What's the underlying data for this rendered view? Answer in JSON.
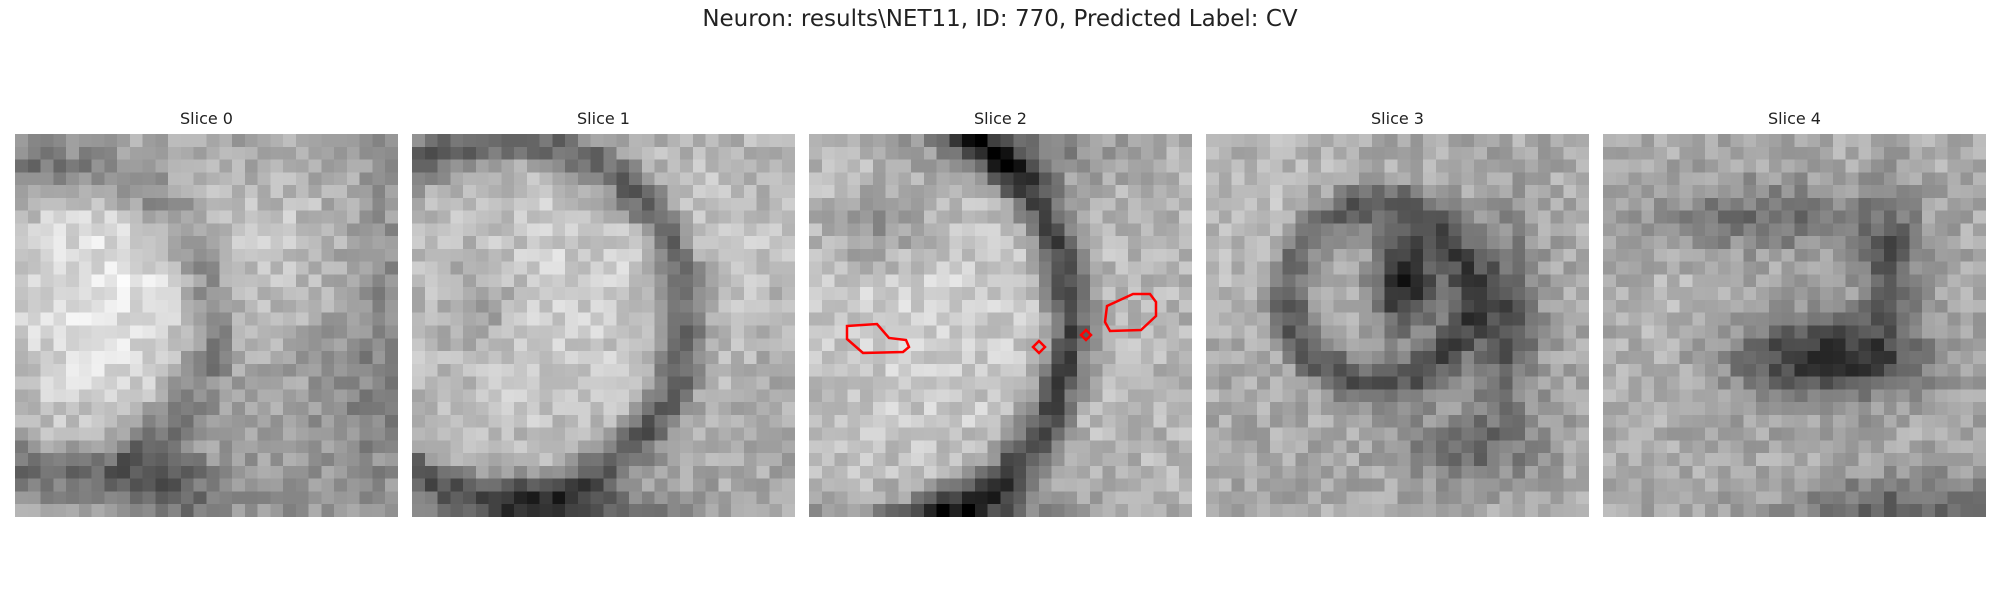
{
  "figure": {
    "title": "Neuron: results\\NET11, ID: 770, Predicted Label: CV"
  },
  "slices": [
    {
      "title": "Slice 0",
      "pattern": "bright-left-blob"
    },
    {
      "title": "Slice 1",
      "pattern": "round-cell-with-dark-membrane"
    },
    {
      "title": "Slice 2",
      "pattern": "cell-with-red-contours",
      "has_contours": true
    },
    {
      "title": "Slice 3",
      "pattern": "dark-spot-center"
    },
    {
      "title": "Slice 4",
      "pattern": "dark-band-right"
    }
  ],
  "colors": {
    "contour": "#ff0000",
    "background": "#ffffff"
  },
  "grid_size": 30
}
